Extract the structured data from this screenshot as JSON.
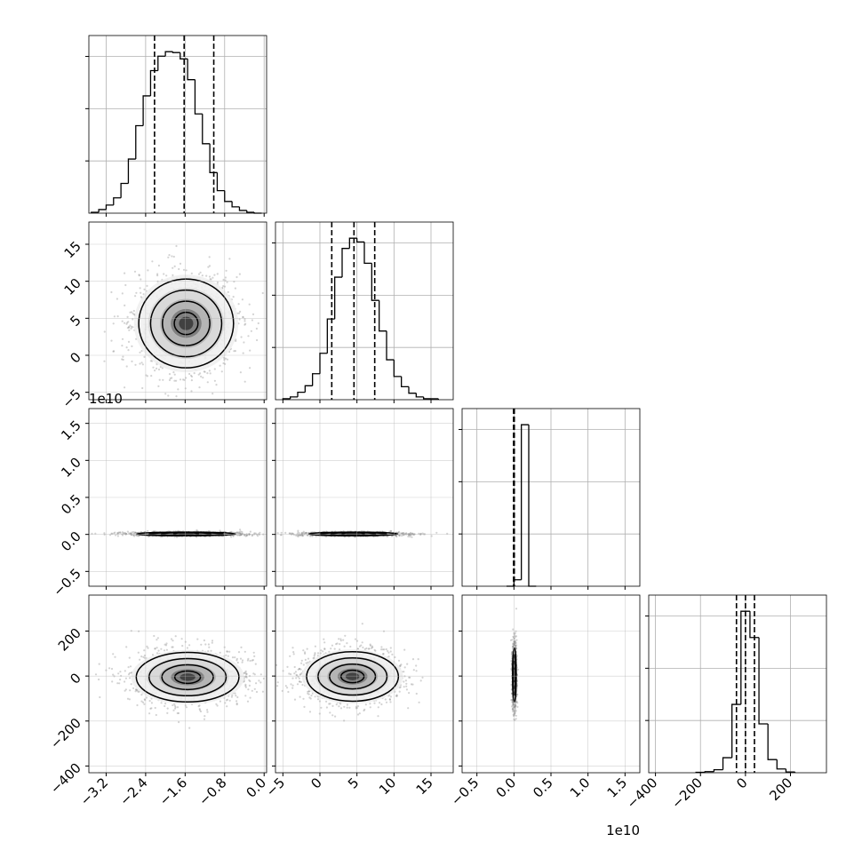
{
  "chart_data": {
    "type": "corner",
    "offset_labels": {
      "row2_y": "1e10",
      "col2_x": "1e10"
    },
    "axes": {
      "p0": {
        "lim": [
          -3.55,
          0.05
        ],
        "ticks": [
          -3.2,
          -2.4,
          -1.6,
          -0.8,
          0.0
        ],
        "tick_labels": [
          "−3.2",
          "−2.4",
          "−1.6",
          "−0.8",
          "0.0"
        ]
      },
      "p1": {
        "lim": [
          -6,
          18
        ],
        "ticks": [
          -5,
          0,
          5,
          10,
          15
        ],
        "tick_labels": [
          "−5",
          "0",
          "5",
          "10",
          "15"
        ]
      },
      "p2": {
        "lim": [
          -0.7,
          1.7
        ],
        "ticks": [
          -0.5,
          0.0,
          0.5,
          1.0,
          1.5
        ],
        "tick_labels": [
          "−0.5",
          "0.0",
          "0.5",
          "1.0",
          "1.5"
        ]
      },
      "p3": {
        "lim": [
          -430,
          360
        ],
        "ticks": [
          -400,
          -200,
          0,
          200
        ],
        "tick_labels": [
          "−400",
          "−200",
          "0",
          "200"
        ]
      }
    },
    "histograms": [
      {
        "param": "p0",
        "edges": [
          -3.5,
          -3.35,
          -3.2,
          -3.05,
          -2.9,
          -2.75,
          -2.6,
          -2.45,
          -2.3,
          -2.15,
          -2.0,
          -1.85,
          -1.7,
          -1.55,
          -1.4,
          -1.25,
          -1.1,
          -0.95,
          -0.8,
          -0.65,
          -0.5,
          -0.35,
          -0.2,
          -0.05
        ],
        "counts": [
          1,
          4,
          9,
          17,
          33,
          60,
          97,
          130,
          158,
          174,
          179,
          178,
          171,
          148,
          110,
          77,
          45,
          25,
          13,
          7,
          3,
          1,
          0
        ],
        "quantiles": [
          -2.22,
          -1.62,
          -1.02
        ]
      },
      {
        "param": "p1",
        "edges": [
          -5,
          -4,
          -3,
          -2,
          -1,
          0,
          1,
          2,
          3,
          4,
          5,
          6,
          7,
          8,
          9,
          10,
          11,
          12,
          13,
          14,
          15,
          16
        ],
        "counts": [
          1,
          3,
          8,
          15,
          28,
          50,
          87,
          132,
          163,
          174,
          170,
          147,
          107,
          74,
          43,
          25,
          14,
          7,
          3,
          1,
          1
        ],
        "quantiles": [
          1.6,
          4.6,
          7.4
        ]
      },
      {
        "param": "p2",
        "edges": [
          -0.1,
          0.0,
          0.1,
          0.2,
          0.3
        ],
        "counts": [
          0,
          4,
          100,
          0
        ],
        "quantiles": [
          -0.005,
          0.0,
          0.005
        ]
      },
      {
        "param": "p3",
        "edges": [
          -220,
          -180,
          -140,
          -100,
          -60,
          -20,
          20,
          60,
          100,
          140,
          180,
          220
        ],
        "counts": [
          1,
          3,
          8,
          40,
          182,
          430,
          360,
          130,
          35,
          10,
          2
        ],
        "quantiles": [
          -40,
          0,
          40
        ]
      }
    ],
    "pairs": [
      {
        "x": "p0",
        "y": "p1",
        "cx": -1.58,
        "cy": 4.3,
        "sx": 0.48,
        "sy": 3.0,
        "tilt": 0.03
      },
      {
        "x": "p0",
        "y": "p2",
        "cx": -1.58,
        "cy": 0.006,
        "sx": 0.5,
        "sy": 0.012,
        "tilt": 0.0
      },
      {
        "x": "p1",
        "y": "p2",
        "cx": 4.5,
        "cy": 0.006,
        "sx": 3.0,
        "sy": 0.012,
        "tilt": 0.0
      },
      {
        "x": "p0",
        "y": "p3",
        "cx": -1.55,
        "cy": -5,
        "sx": 0.52,
        "sy": 55,
        "tilt": 0.0
      },
      {
        "x": "p1",
        "y": "p3",
        "cx": 4.4,
        "cy": -2,
        "sx": 3.1,
        "sy": 55,
        "tilt": 0.0
      },
      {
        "x": "p2",
        "y": "p3",
        "cx": 0.006,
        "cy": 5,
        "sx": 0.012,
        "sy": 60,
        "tilt": 0.0
      }
    ],
    "contour_levels_sigma": [
      0.5,
      1.0,
      1.5,
      2.0
    ],
    "grid": true,
    "colors": {
      "line": "#000000",
      "grid": "#b0b0b0",
      "points": "#808080"
    }
  }
}
